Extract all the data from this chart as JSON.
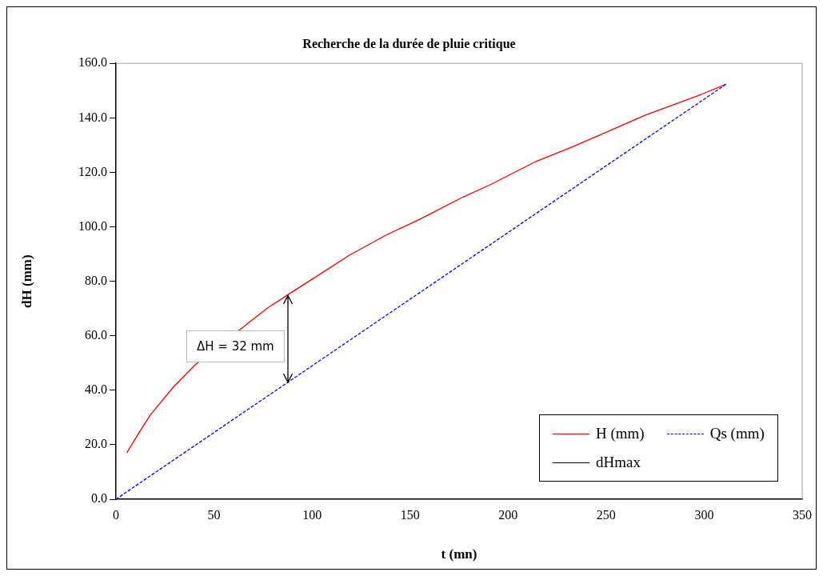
{
  "chart_data": {
    "type": "line",
    "title": "Recherche de la durée de pluie critique",
    "xlabel": "t (mn)",
    "ylabel": "dH (mm)",
    "xlim": [
      0,
      350
    ],
    "xticks": [
      0,
      50,
      100,
      150,
      200,
      250,
      300,
      350
    ],
    "ylim": [
      0,
      160
    ],
    "yticks": [
      {
        "value": 0,
        "label": "0.0"
      },
      {
        "value": 20,
        "label": "20.0"
      },
      {
        "value": 40,
        "label": "40.0"
      },
      {
        "value": 60,
        "label": "60.0"
      },
      {
        "value": 80,
        "label": "80.0"
      },
      {
        "value": 100,
        "label": "100.0"
      },
      {
        "value": 120,
        "label": "120.0"
      },
      {
        "value": 140,
        "label": "140.0"
      },
      {
        "value": 160,
        "label": "160.0"
      }
    ],
    "grid": false,
    "legend": "bottom right",
    "marker": "none",
    "series": [
      {
        "name": "H (mm)",
        "color": "#ff0000",
        "line_style": "solid",
        "x": [
          5.5,
          11.8,
          17.6,
          29.3,
          40.2,
          64.9,
          77.3,
          87.5,
          101.4,
          118.9,
          137.8,
          155.3,
          177.2,
          191,
          214.2,
          233.2,
          250.9,
          270,
          298.5,
          311.1
        ],
        "values": [
          17.0,
          24.5,
          31.0,
          41.2,
          49.2,
          63.2,
          70.2,
          75.0,
          81.4,
          89.5,
          97.0,
          102.9,
          111.0,
          115.5,
          124.0,
          129.5,
          135.0,
          141.0,
          148.6,
          152.3
        ]
      },
      {
        "name": "Qs (mm)",
        "color": "#0000ff",
        "line_style": "dashed",
        "x": [
          0,
          311.1
        ],
        "values": [
          0,
          152.3
        ]
      },
      {
        "name": "dHmax",
        "color": "#000000",
        "line_style": "solid",
        "x": [
          87.7,
          87.7
        ],
        "values": [
          42.9,
          75.0
        ]
      }
    ],
    "annotations": [
      {
        "text": "ΔH = 32 mm",
        "x": 87.7,
        "y": 59
      }
    ]
  }
}
